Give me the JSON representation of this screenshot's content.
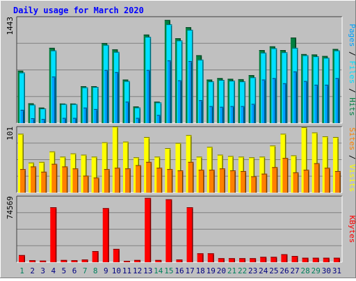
{
  "chart_data": {
    "type": "bar",
    "title": "Daily usage for March 2020",
    "days": [
      "1",
      "2",
      "3",
      "4",
      "5",
      "6",
      "7",
      "8",
      "9",
      "10",
      "11",
      "12",
      "13",
      "14",
      "15",
      "16",
      "17",
      "18",
      "19",
      "20",
      "21",
      "22",
      "23",
      "24",
      "25",
      "26",
      "27",
      "28",
      "29",
      "30",
      "31"
    ],
    "weekend_days": [
      "1",
      "7",
      "8",
      "14",
      "15",
      "21",
      "22",
      "28",
      "29"
    ],
    "panels": [
      {
        "id": "traffic",
        "ymax": 1443,
        "ymax_label": "1443",
        "axis_label_parts": [
          "Pages",
          "Files",
          "Hits"
        ],
        "series": [
          {
            "name": "Hits",
            "color": "#008040",
            "values": [
              710,
              268,
              210,
              1020,
              265,
              265,
              500,
              500,
              1085,
              1000,
              590,
              225,
              1200,
              290,
              1398,
              1150,
              1300,
              920,
              590,
              610,
              600,
              595,
              650,
              990,
              1040,
              990,
              1160,
              935,
              930,
              910,
              1005
            ]
          },
          {
            "name": "Files",
            "color": "#00e0ff",
            "values": [
              685,
              250,
              198,
              985,
              258,
              258,
              485,
              490,
              1060,
              965,
              570,
              212,
              1170,
              280,
              1340,
              1120,
              1265,
              860,
              565,
              585,
              575,
              565,
              620,
              955,
              1015,
              960,
              1020,
              920,
              905,
              885,
              985
            ]
          },
          {
            "name": "Pages",
            "color": "#00a0ff",
            "values": [
              180,
              65,
              55,
              630,
              70,
              70,
              210,
              190,
              720,
              690,
              290,
              70,
              720,
              110,
              850,
              580,
              840,
              310,
              230,
              220,
              230,
              230,
              260,
              590,
              610,
              540,
              700,
              570,
              520,
              520,
              610
            ]
          }
        ]
      },
      {
        "id": "visitors",
        "ymax": 101,
        "ymax_label": "101",
        "axis_label_parts": [
          "Sites",
          "Visits"
        ],
        "series": [
          {
            "name": "Visits",
            "color": "#ffff00",
            "values": [
              90,
              46,
              47,
              63,
              55,
              60,
              58,
              55,
              77,
              101,
              78,
              54,
              85,
              55,
              68,
              76,
              88,
              55,
              70,
              58,
              56,
              55,
              54,
              55,
              72,
              90,
              57,
              100,
              92,
              86,
              85
            ]
          },
          {
            "name": "Sites",
            "color": "#ff8000",
            "values": [
              36,
              40,
              32,
              44,
              40,
              37,
              26,
              23,
              36,
              38,
              37,
              42,
              47,
              38,
              36,
              34,
              47,
              35,
              35,
              37,
              34,
              33,
              25,
              29,
              39,
              53,
              31,
              35,
              45,
              38,
              33
            ]
          }
        ]
      },
      {
        "id": "kbytes",
        "ymax": 74569,
        "ymax_label": "74569",
        "axis_label_parts": [
          "KBytes"
        ],
        "series": [
          {
            "name": "KBytes",
            "color": "#ff0000",
            "values": [
              8000,
              2200,
              1800,
              62000,
              2500,
              2200,
              3000,
              12500,
              61000,
              15000,
              1500,
              2500,
              72500,
              2500,
              71000,
              3000,
              62000,
              10000,
              10000,
              4500,
              4500,
              4500,
              4500,
              6000,
              6000,
              9000,
              7000,
              5000,
              5000,
              5000,
              5000
            ]
          }
        ]
      }
    ],
    "grid": true,
    "colors": {
      "background": "#c0c0c0",
      "title": "#0000ff",
      "weekday_label": "#000080",
      "weekend_label": "#00805c",
      "frame": "#808080"
    }
  }
}
